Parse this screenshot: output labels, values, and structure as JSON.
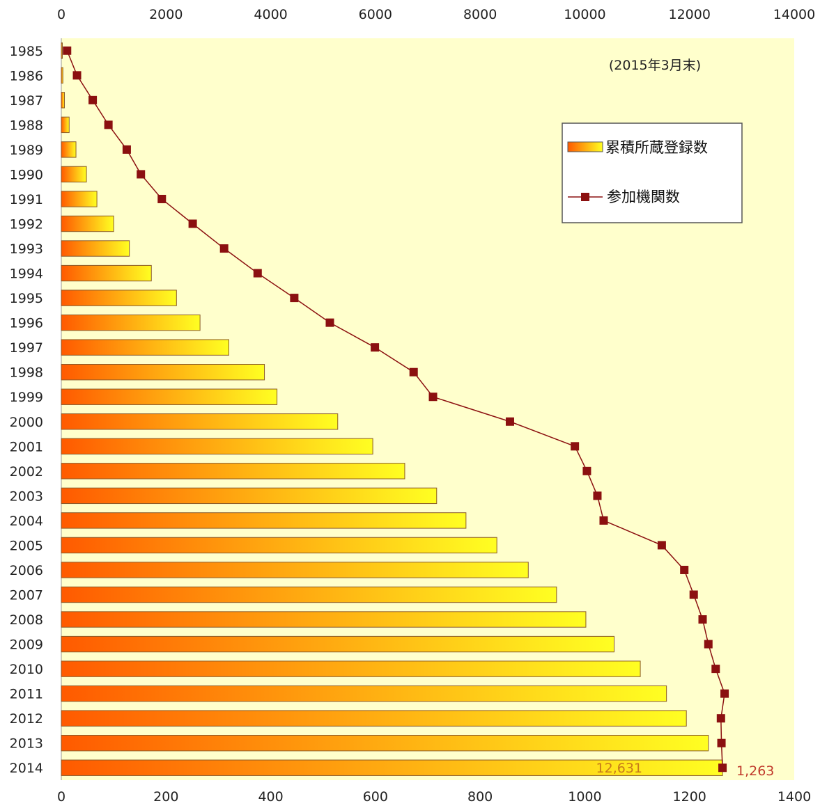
{
  "chart_data": {
    "type": "bar",
    "orientation": "horizontal",
    "categories": [
      "1985",
      "1986",
      "1987",
      "1988",
      "1989",
      "1990",
      "1991",
      "1992",
      "1993",
      "1994",
      "1995",
      "1996",
      "1997",
      "1998",
      "1999",
      "2000",
      "2001",
      "2002",
      "2003",
      "2004",
      "2005",
      "2006",
      "2007",
      "2008",
      "2009",
      "2010",
      "2011",
      "2012",
      "2013",
      "2014"
    ],
    "series": [
      {
        "name": "累積所蔵登録数",
        "type": "bar",
        "axis": "top",
        "values": [
          10,
          30,
          60,
          150,
          280,
          480,
          680,
          1000,
          1300,
          1720,
          2200,
          2650,
          3200,
          3880,
          4120,
          5280,
          5950,
          6560,
          7170,
          7730,
          8320,
          8920,
          9460,
          10020,
          10560,
          11060,
          11560,
          11940,
          12360,
          12631
        ],
        "color_start": "#ff5a00",
        "color_end": "#ffff22"
      },
      {
        "name": "参加機関数",
        "type": "line",
        "axis": "bottom",
        "values": [
          11,
          30,
          60,
          90,
          125,
          152,
          192,
          251,
          311,
          375,
          445,
          513,
          599,
          673,
          710,
          857,
          981,
          1004,
          1024,
          1036,
          1147,
          1190,
          1208,
          1225,
          1236,
          1250,
          1267,
          1260,
          1261,
          1263
        ],
        "color": "#8b1010"
      }
    ],
    "top_axis": {
      "range": [
        0,
        14000
      ],
      "ticks": [
        "0",
        "2000",
        "4000",
        "6000",
        "8000",
        "10000",
        "12000",
        "14000"
      ]
    },
    "bottom_axis": {
      "range": [
        0,
        1400
      ],
      "ticks": [
        "0",
        "200",
        "400",
        "600",
        "800",
        "1000",
        "1200",
        "1400"
      ]
    },
    "annotation": "(2015年3月末)",
    "data_labels": {
      "bar_last": "12,631",
      "line_last": "1,263"
    },
    "legend_position": "top-right",
    "grid": false,
    "plot_background": "#ffffcc"
  }
}
